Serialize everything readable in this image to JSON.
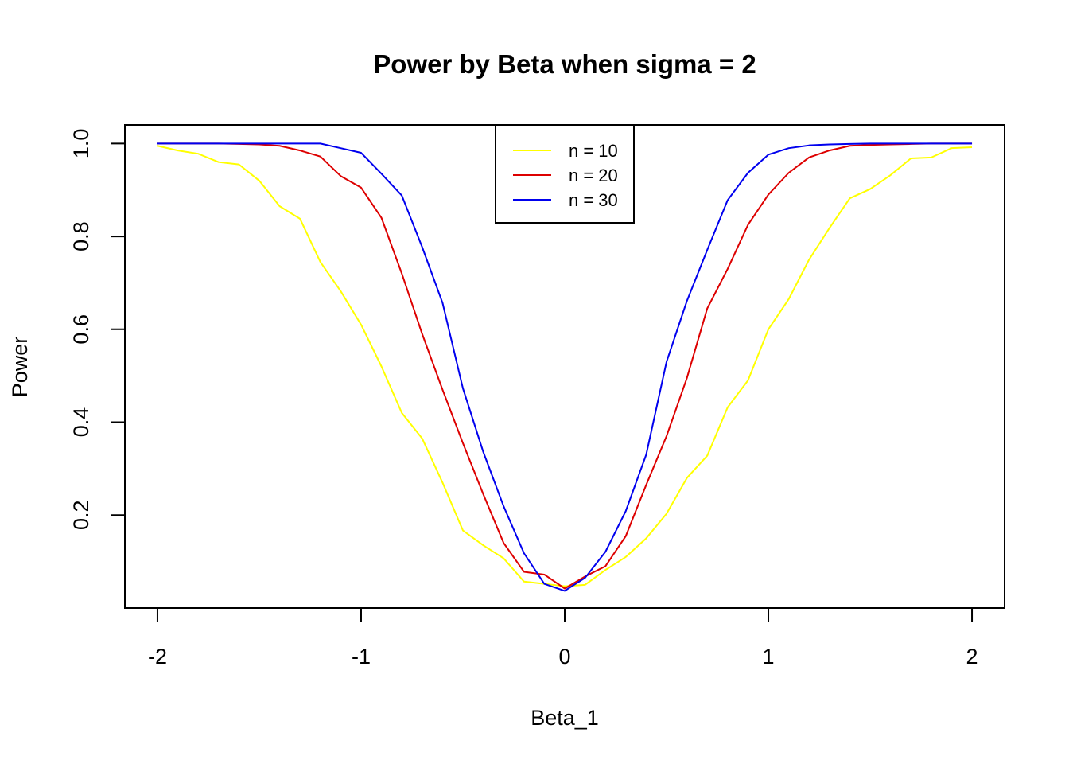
{
  "chart_data": {
    "type": "line",
    "title": "Power by Beta when sigma =  2",
    "xlabel": "Beta_1",
    "ylabel": "Power",
    "xlim": [
      -2.16,
      2.16
    ],
    "ylim": [
      0.0,
      1.04
    ],
    "x_ticks": [
      -2,
      -1,
      0,
      1,
      2
    ],
    "x_tick_labels": [
      "-2",
      "-1",
      "0",
      "1",
      "2"
    ],
    "y_ticks": [
      0.2,
      0.4,
      0.6,
      0.8,
      1.0
    ],
    "y_tick_labels": [
      "0.2",
      "0.4",
      "0.6",
      "0.8",
      "1.0"
    ],
    "grid": false,
    "legend_position": "top-center",
    "x": [
      -2.0,
      -1.9,
      -1.8,
      -1.7,
      -1.6,
      -1.5,
      -1.4,
      -1.3,
      -1.2,
      -1.1,
      -1.0,
      -0.9,
      -0.8,
      -0.7,
      -0.6,
      -0.5,
      -0.4,
      -0.3,
      -0.2,
      -0.1,
      0.0,
      0.1,
      0.2,
      0.3,
      0.4,
      0.5,
      0.6,
      0.7,
      0.8,
      0.9,
      1.0,
      1.1,
      1.2,
      1.3,
      1.4,
      1.5,
      1.6,
      1.7,
      1.8,
      1.9,
      2.0
    ],
    "series": [
      {
        "name": "n = 10",
        "color": "#FFFF00",
        "values": [
          0.995,
          0.985,
          0.978,
          0.96,
          0.955,
          0.92,
          0.865,
          0.838,
          0.745,
          0.682,
          0.61,
          0.52,
          0.42,
          0.365,
          0.27,
          0.167,
          0.135,
          0.107,
          0.057,
          0.052,
          0.047,
          0.05,
          0.082,
          0.11,
          0.15,
          0.203,
          0.28,
          0.328,
          0.432,
          0.49,
          0.6,
          0.665,
          0.75,
          0.818,
          0.882,
          0.902,
          0.932,
          0.968,
          0.97,
          0.99,
          0.992
        ]
      },
      {
        "name": "n = 20",
        "color": "#DD0000",
        "values": [
          1.0,
          1.0,
          1.0,
          1.0,
          0.999,
          0.998,
          0.995,
          0.985,
          0.972,
          0.93,
          0.905,
          0.84,
          0.72,
          0.59,
          0.47,
          0.355,
          0.245,
          0.14,
          0.078,
          0.072,
          0.042,
          0.068,
          0.09,
          0.155,
          0.265,
          0.37,
          0.495,
          0.645,
          0.73,
          0.825,
          0.89,
          0.937,
          0.97,
          0.985,
          0.995,
          0.997,
          0.998,
          0.999,
          1.0,
          1.0,
          1.0
        ]
      },
      {
        "name": "n = 30",
        "color": "#0000EE",
        "values": [
          1.0,
          1.0,
          1.0,
          1.0,
          1.0,
          1.0,
          1.0,
          1.0,
          1.0,
          0.99,
          0.98,
          0.935,
          0.888,
          0.777,
          0.657,
          0.473,
          0.336,
          0.219,
          0.118,
          0.052,
          0.037,
          0.065,
          0.121,
          0.209,
          0.33,
          0.53,
          0.661,
          0.771,
          0.878,
          0.937,
          0.976,
          0.99,
          0.996,
          0.998,
          0.999,
          1.0,
          1.0,
          1.0,
          1.0,
          1.0,
          1.0
        ]
      }
    ]
  }
}
